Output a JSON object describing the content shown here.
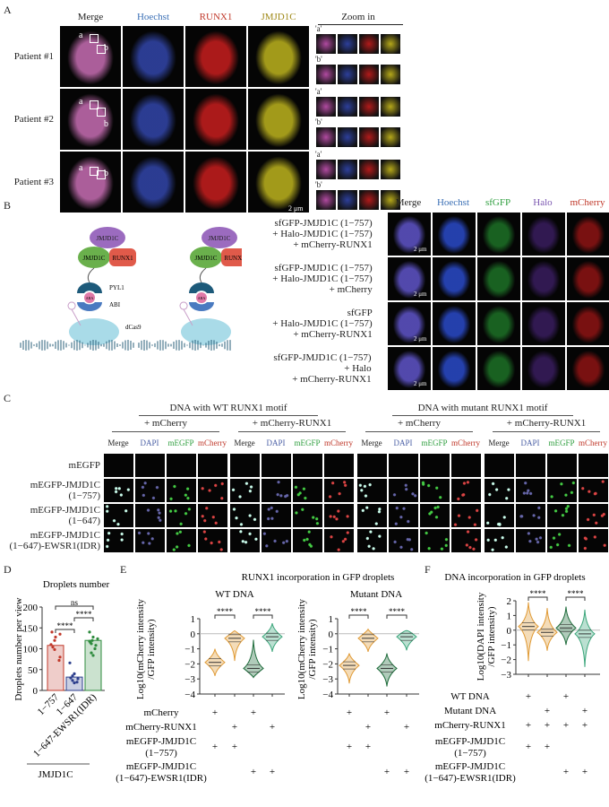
{
  "panelA": {
    "letter": "A",
    "headers": [
      "Merge",
      "Hoechst",
      "RUNX1",
      "JMJD1C"
    ],
    "header_colors": [
      "#222222",
      "#3a6fb5",
      "#c0392b",
      "#a08a1a"
    ],
    "zoom_header": "Zoom in",
    "patients": [
      "Patient #1",
      "Patient #2",
      "Patient #3"
    ],
    "roi_labels": [
      "a",
      "b"
    ],
    "zoom_labels": [
      "'a'",
      "'b'"
    ],
    "scale_bar": "2 μm"
  },
  "panelB": {
    "letter": "B",
    "diagram": {
      "top": "JMJD1C",
      "left": "JMJD1C",
      "right": "RUNX1",
      "pyl1": "PYL1",
      "aba": "ABA",
      "abi": "ABI",
      "dcas9": "dCas9"
    },
    "headers": [
      "Merge",
      "Hoechst",
      "sfGFP",
      "Halo",
      "mCherry"
    ],
    "header_colors": [
      "#222222",
      "#3a6fb5",
      "#2e9e3e",
      "#7b57b0",
      "#c0392b"
    ],
    "rows": [
      [
        "sfGFP-JMJD1C (1−757)",
        "+ Halo-JMJD1C (1−757)",
        "+ mCherry-RUNX1"
      ],
      [
        "sfGFP-JMJD1C (1−757)",
        "+ Halo-JMJD1C (1−757)",
        "+ mCherry"
      ],
      [
        "sfGFP",
        "+ Halo-JMJD1C (1−757)",
        "+ mCherry-RUNX1"
      ],
      [
        "sfGFP-JMJD1C (1−757)",
        "+ Halo",
        "+ mCherry-RUNX1"
      ]
    ],
    "scale_bar": "2 μm"
  },
  "panelC": {
    "letter": "C",
    "groups": [
      "DNA with WT RUNX1 motif",
      "DNA with mutant RUNX1 motif"
    ],
    "subgroups": [
      "+ mCherry",
      "+ mCherry-RUNX1",
      "+ mCherry",
      "+ mCherry-RUNX1"
    ],
    "channels": [
      "Merge",
      "DAPI",
      "mEGFP",
      "mCherry"
    ],
    "channel_colors": [
      "#222222",
      "#4a5fa5",
      "#2e9e3e",
      "#c0392b"
    ],
    "rows": [
      [
        "mEGFP"
      ],
      [
        "mEGFP-JMJD1C",
        "(1−757)"
      ],
      [
        "mEGFP-JMJD1C",
        "(1−647)"
      ],
      [
        "mEGFP-JMJD1C",
        "(1−647)-EWSR1(IDR)"
      ]
    ]
  },
  "chart_data": [
    {
      "panel": "D",
      "type": "bar",
      "title": "Droplets number",
      "ylabel": "Droplets number per view",
      "categories": [
        "1−757",
        "1−647",
        "1−647-EWSR1(IDR)"
      ],
      "group_label": "JMJD1C",
      "values": [
        108,
        32,
        120
      ],
      "ylim": [
        0,
        200
      ],
      "yticks": [
        0,
        50,
        100,
        150,
        200
      ],
      "colors": [
        "#c0392b",
        "#2c3e8c",
        "#2e8b3e"
      ],
      "points": [
        [
          140,
          135,
          128,
          120,
          110,
          104,
          98,
          80,
          72
        ],
        [
          66,
          40,
          35,
          30,
          28,
          24,
          20,
          18
        ],
        [
          140,
          128,
          124,
          120,
          118,
          115,
          112,
          108,
          100,
          90,
          84
        ]
      ],
      "significance": [
        {
          "pair": [
            0,
            1
          ],
          "label": "****"
        },
        {
          "pair": [
            1,
            2
          ],
          "label": "****"
        },
        {
          "pair": [
            0,
            2
          ],
          "label": "ns"
        }
      ]
    },
    {
      "panel": "E",
      "type": "violin",
      "title": "RUNX1 incorporation in GFP droplets",
      "subtitle": "WT DNA",
      "ylabel": [
        "Log10(mCherry intensity",
        "/GFP intensity)"
      ],
      "ylim": [
        -4,
        1
      ],
      "yticks": [
        -4,
        -3,
        -2,
        -1,
        0,
        1
      ],
      "series": [
        {
          "median": -1.9,
          "min": -2.8,
          "max": -1.0
        },
        {
          "median": -0.3,
          "min": -1.8,
          "max": 0.2
        },
        {
          "median": -2.3,
          "min": -2.9,
          "max": -0.4
        },
        {
          "median": -0.2,
          "min": -1.2,
          "max": 0.7
        }
      ],
      "significance": [
        {
          "pair": [
            0,
            1
          ],
          "label": "****"
        },
        {
          "pair": [
            2,
            3
          ],
          "label": "****"
        }
      ]
    },
    {
      "panel": "E",
      "type": "violin",
      "subtitle": "Mutant DNA",
      "ylabel": [
        "Log10(mCherry intensity",
        "/GFP intensity)"
      ],
      "ylim": [
        -4,
        1
      ],
      "yticks": [
        -4,
        -3,
        -2,
        -1,
        0,
        1
      ],
      "series": [
        {
          "median": -2.1,
          "min": -3.3,
          "max": -1.3
        },
        {
          "median": -0.3,
          "min": -1.2,
          "max": 0.3
        },
        {
          "median": -2.3,
          "min": -3.5,
          "max": -1.3
        },
        {
          "median": -0.2,
          "min": -1.1,
          "max": 0.2
        }
      ],
      "significance": [
        {
          "pair": [
            0,
            1
          ],
          "label": "****"
        },
        {
          "pair": [
            2,
            3
          ],
          "label": "****"
        }
      ]
    },
    {
      "panel": "F",
      "type": "violin",
      "title": "DNA incorporation in GFP droplets",
      "ylabel": [
        "Log10(DAPI intensity",
        "/GFP intensity)"
      ],
      "ylim": [
        -3,
        2
      ],
      "yticks": [
        -3,
        -2,
        -1,
        0,
        1,
        2
      ],
      "series": [
        {
          "median": 0.25,
          "min": -2.1,
          "max": 1.9
        },
        {
          "median": -0.15,
          "min": -1.4,
          "max": 1.5
        },
        {
          "median": 0.15,
          "min": -1.0,
          "max": 1.6
        },
        {
          "median": -0.25,
          "min": -2.5,
          "max": 1.4
        }
      ],
      "significance": [
        {
          "pair": [
            0,
            1
          ],
          "label": "****"
        },
        {
          "pair": [
            2,
            3
          ],
          "label": "****"
        }
      ]
    }
  ],
  "violin_colors": [
    "#e09a35",
    "#e09a35",
    "#1d6b3a",
    "#3aa57a"
  ],
  "panelE": {
    "letter": "E",
    "conditions": [
      {
        "label": [
          "mCherry"
        ],
        "plus": [
          1,
          0,
          1,
          0
        ]
      },
      {
        "label": [
          "mCherry-RUNX1"
        ],
        "plus": [
          0,
          1,
          0,
          1
        ]
      },
      {
        "label": [
          "mEGFP-JMJD1C",
          "(1−757)"
        ],
        "plus": [
          1,
          1,
          0,
          0
        ]
      },
      {
        "label": [
          "mEGFP-JMJD1C",
          "(1−647)-EWSR1(IDR)"
        ],
        "plus": [
          0,
          0,
          1,
          1
        ]
      }
    ]
  },
  "panelF": {
    "letter": "F",
    "conditions": [
      {
        "label": [
          "WT DNA"
        ],
        "plus": [
          1,
          0,
          1,
          0
        ]
      },
      {
        "label": [
          "Mutant DNA"
        ],
        "plus": [
          0,
          1,
          0,
          1
        ]
      },
      {
        "label": [
          "mCherry-RUNX1"
        ],
        "plus": [
          1,
          1,
          1,
          1
        ]
      },
      {
        "label": [
          "mEGFP-JMJD1C",
          "(1−757)"
        ],
        "plus": [
          1,
          1,
          0,
          0
        ]
      },
      {
        "label": [
          "mEGFP-JMJD1C",
          "(1−647)-EWSR1(IDR)"
        ],
        "plus": [
          0,
          0,
          1,
          1
        ]
      }
    ]
  },
  "panelD": {
    "letter": "D"
  },
  "plus_sign": "+"
}
